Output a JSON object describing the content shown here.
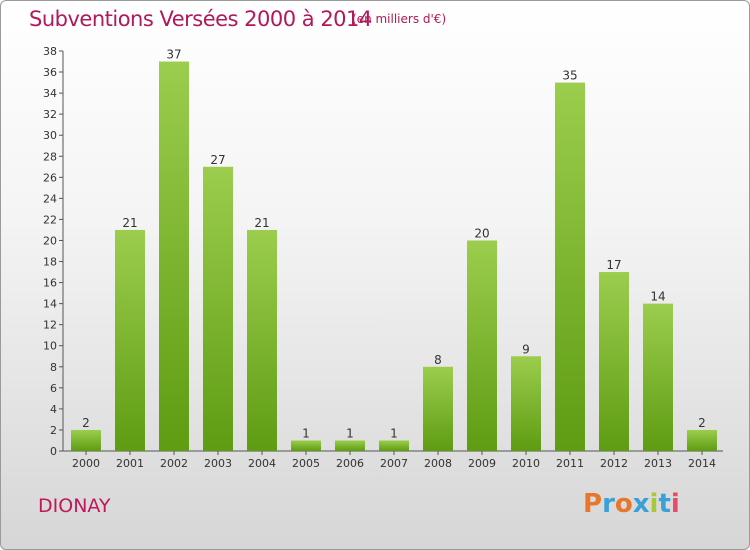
{
  "header": {
    "title": "Subventions Versées 2000 à 2014",
    "subtitle": "(en milliers d'€)"
  },
  "footer": {
    "commune": "DIONAY",
    "logo": "Proxiti",
    "logo_colors": [
      "#e8762c",
      "#3aa0d8",
      "#e8762c",
      "#3aa0d8",
      "#a8c83c",
      "#3aa0d8",
      "#e84a6a"
    ]
  },
  "colors": {
    "bar_top": "#9ccd4e",
    "bar_bottom": "#5e9c12",
    "title": "#b0195a"
  },
  "chart_data": {
    "type": "bar",
    "title": "Subventions Versées 2000 à 2014",
    "subtitle": "(en milliers d'€)",
    "categories": [
      "2000",
      "2001",
      "2002",
      "2003",
      "2004",
      "2005",
      "2006",
      "2007",
      "2008",
      "2009",
      "2010",
      "2011",
      "2012",
      "2013",
      "2014"
    ],
    "values": [
      2,
      21,
      37,
      27,
      21,
      1,
      1,
      1,
      8,
      20,
      9,
      35,
      17,
      14,
      2
    ],
    "ylim": [
      0,
      38
    ],
    "yticks": [
      0,
      2,
      4,
      6,
      8,
      10,
      12,
      14,
      16,
      18,
      20,
      22,
      24,
      26,
      28,
      30,
      32,
      34,
      36,
      38
    ],
    "grid": false,
    "data_labels": true
  }
}
